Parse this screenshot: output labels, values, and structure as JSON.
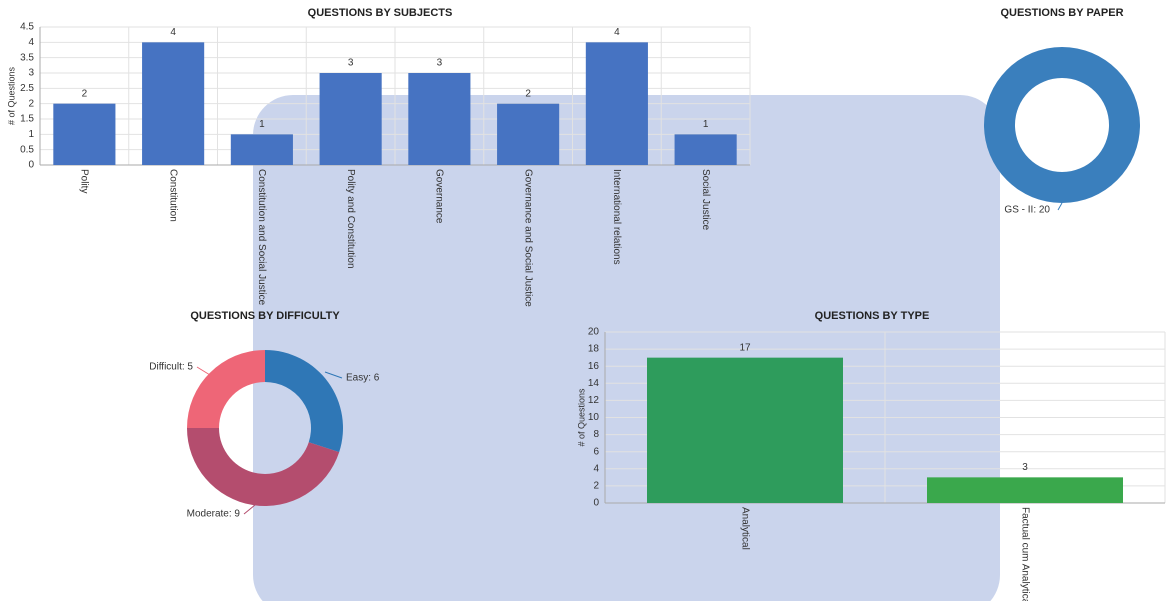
{
  "chart_data": [
    {
      "type": "bar",
      "title": "QUESTIONS BY SUBJECTS",
      "y_label": "# of Questions",
      "categories": [
        "Polity",
        "Constitution",
        "Constitution and Social Justice",
        "Polity and Constitution",
        "Governance",
        "Governance and Social Justice",
        "International relations",
        "Social Justice"
      ],
      "values": [
        2,
        4,
        1,
        3,
        3,
        2,
        4,
        1
      ],
      "color": "#4673c2",
      "ylim": [
        0,
        4.5
      ],
      "yticks": [
        0,
        0.5,
        1,
        1.5,
        2,
        2.5,
        3,
        3.5,
        4,
        4.5
      ],
      "grid": true
    },
    {
      "type": "donut",
      "title": "QUESTIONS BY PAPER",
      "categories": [
        "GS - II"
      ],
      "values": [
        20
      ],
      "value_labels": [
        "GS - II: 20"
      ],
      "colors": [
        "#3a7fbd"
      ]
    },
    {
      "type": "donut",
      "title": "QUESTIONS BY DIFFICULTY",
      "categories": [
        "Easy",
        "Moderate",
        "Difficult"
      ],
      "values": [
        6,
        9,
        5
      ],
      "value_labels": [
        "Easy: 6",
        "Moderate: 9",
        "Difficult: 5"
      ],
      "colors": [
        "#2f77b6",
        "#b44d6e",
        "#ee6677"
      ]
    },
    {
      "type": "bar",
      "title": "QUESTIONS BY TYPE",
      "y_label": "# of Questions",
      "categories": [
        "Analytical",
        "Factual cum Analytical"
      ],
      "values": [
        17,
        3
      ],
      "colors": [
        "#2e9c5c",
        "#3aa84c"
      ],
      "ylim": [
        0,
        20
      ],
      "yticks": [
        0,
        2,
        4,
        6,
        8,
        10,
        12,
        14,
        16,
        18,
        20
      ],
      "grid": true
    }
  ]
}
